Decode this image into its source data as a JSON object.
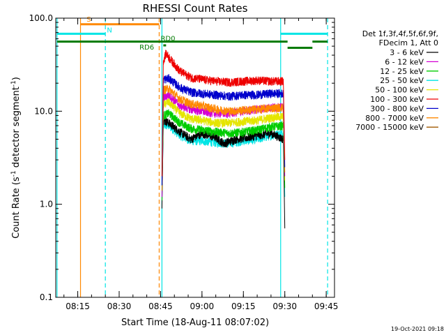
{
  "chart_data": {
    "type": "line",
    "title": "RHESSI Count Rates",
    "xlabel": "Start Time (18-Aug-11 08:07:02)",
    "ylabel_main": "Count Rate (s",
    "ylabel_sup": "-1",
    "ylabel_mid": " detector segment",
    "ylabel_sup2": "-1",
    "ylabel_end": ")",
    "yscale": "log",
    "ylim": [
      0.1,
      100.0
    ],
    "yticks": [
      {
        "value": 0.1,
        "label": "0.1"
      },
      {
        "value": 1.0,
        "label": "1.0"
      },
      {
        "value": 10.0,
        "label": "10.0"
      },
      {
        "value": 100.0,
        "label": "100.0"
      }
    ],
    "xlim": [
      "08:07:02",
      "09:48:00"
    ],
    "xticks": [
      {
        "value": "08:15",
        "label": "08:15"
      },
      {
        "value": "08:30",
        "label": "08:30"
      },
      {
        "value": "08:45",
        "label": "08:45"
      },
      {
        "value": "09:00",
        "label": "09:00"
      },
      {
        "value": "09:15",
        "label": "09:15"
      },
      {
        "value": "09:30",
        "label": "09:30"
      },
      {
        "value": "09:45",
        "label": "09:45"
      }
    ],
    "data_start": "08:45:30",
    "data_end": "09:30:00",
    "legend_header": [
      "Det 1f,3f,4f,5f,6f,9f,",
      "FDecim 1, Att 0"
    ],
    "legend_position": "right",
    "series": [
      {
        "name": "3 - 6 keV",
        "color": "#000000",
        "points": [
          [
            "08:45:30",
            0.9
          ],
          [
            "08:46:00",
            8.0
          ],
          [
            "08:48:00",
            7.5
          ],
          [
            "08:52:00",
            6.0
          ],
          [
            "08:56:00",
            5.0
          ],
          [
            "09:00:00",
            5.8
          ],
          [
            "09:05:00",
            5.2
          ],
          [
            "09:08:00",
            4.5
          ],
          [
            "09:12:00",
            5.0
          ],
          [
            "09:16:00",
            5.2
          ],
          [
            "09:20:00",
            5.5
          ],
          [
            "09:25:00",
            5.8
          ],
          [
            "09:29:30",
            5.0
          ],
          [
            "09:30:00",
            0.55
          ]
        ]
      },
      {
        "name": "6 - 12 keV",
        "color": "#d400d4",
        "points": [
          [
            "08:45:30",
            1.2
          ],
          [
            "08:46:00",
            14.0
          ],
          [
            "08:48:00",
            15.0
          ],
          [
            "08:52:00",
            11.5
          ],
          [
            "08:56:00",
            10.5
          ],
          [
            "09:00:00",
            10.0
          ],
          [
            "09:05:00",
            9.5
          ],
          [
            "09:10:00",
            9.5
          ],
          [
            "09:15:00",
            10.0
          ],
          [
            "09:20:00",
            10.5
          ],
          [
            "09:25:00",
            11.0
          ],
          [
            "09:29:30",
            11.0
          ],
          [
            "09:30:00",
            2.0
          ]
        ]
      },
      {
        "name": "12 - 25 keV",
        "color": "#00cc00",
        "points": [
          [
            "08:45:30",
            1.1
          ],
          [
            "08:46:00",
            9.0
          ],
          [
            "08:48:00",
            9.5
          ],
          [
            "08:52:00",
            7.5
          ],
          [
            "08:56:00",
            6.5
          ],
          [
            "09:00:00",
            6.3
          ],
          [
            "09:05:00",
            6.0
          ],
          [
            "09:10:00",
            5.8
          ],
          [
            "09:15:00",
            6.0
          ],
          [
            "09:20:00",
            6.3
          ],
          [
            "09:25:00",
            6.8
          ],
          [
            "09:29:30",
            7.0
          ],
          [
            "09:30:00",
            1.5
          ]
        ]
      },
      {
        "name": "25 - 50 keV",
        "color": "#00e5e5",
        "points": [
          [
            "08:45:30",
            1.0
          ],
          [
            "08:46:00",
            7.0
          ],
          [
            "08:48:00",
            7.0
          ],
          [
            "08:52:00",
            5.5
          ],
          [
            "08:56:00",
            4.8
          ],
          [
            "09:00:00",
            4.8
          ],
          [
            "09:05:00",
            4.6
          ],
          [
            "09:10:00",
            4.5
          ],
          [
            "09:15:00",
            4.8
          ],
          [
            "09:20:00",
            5.0
          ],
          [
            "09:25:00",
            5.5
          ],
          [
            "09:29:30",
            5.8
          ],
          [
            "09:30:00",
            1.2
          ]
        ]
      },
      {
        "name": "50 - 100 keV",
        "color": "#e5e500",
        "points": [
          [
            "08:45:30",
            1.3
          ],
          [
            "08:46:00",
            12.0
          ],
          [
            "08:48:00",
            12.5
          ],
          [
            "08:52:00",
            9.5
          ],
          [
            "08:56:00",
            8.3
          ],
          [
            "09:00:00",
            8.0
          ],
          [
            "09:05:00",
            7.5
          ],
          [
            "09:10:00",
            7.5
          ],
          [
            "09:15:00",
            7.8
          ],
          [
            "09:20:00",
            8.0
          ],
          [
            "09:25:00",
            8.5
          ],
          [
            "09:29:30",
            8.8
          ],
          [
            "09:30:00",
            1.8
          ]
        ]
      },
      {
        "name": "100 - 300 keV",
        "color": "#ee0000",
        "points": [
          [
            "08:45:30",
            2.0
          ],
          [
            "08:46:00",
            35.0
          ],
          [
            "08:47:00",
            42.0
          ],
          [
            "08:48:00",
            38.0
          ],
          [
            "08:50:00",
            32.0
          ],
          [
            "08:52:00",
            27.0
          ],
          [
            "08:56:00",
            23.0
          ],
          [
            "09:00:00",
            22.0
          ],
          [
            "09:05:00",
            21.0
          ],
          [
            "09:10:00",
            20.5
          ],
          [
            "09:15:00",
            21.0
          ],
          [
            "09:20:00",
            21.5
          ],
          [
            "09:25:00",
            21.0
          ],
          [
            "09:29:30",
            21.0
          ],
          [
            "09:30:00",
            3.0
          ]
        ]
      },
      {
        "name": "300 - 800 keV",
        "color": "#0000cc",
        "points": [
          [
            "08:45:30",
            1.6
          ],
          [
            "08:46:00",
            22.0
          ],
          [
            "08:48:00",
            22.5
          ],
          [
            "08:52:00",
            18.0
          ],
          [
            "08:56:00",
            16.0
          ],
          [
            "09:00:00",
            15.5
          ],
          [
            "09:05:00",
            15.0
          ],
          [
            "09:10:00",
            14.5
          ],
          [
            "09:15:00",
            15.0
          ],
          [
            "09:20:00",
            15.0
          ],
          [
            "09:25:00",
            15.5
          ],
          [
            "09:29:30",
            15.5
          ],
          [
            "09:30:00",
            2.5
          ]
        ]
      },
      {
        "name": "800 - 7000 keV",
        "color": "#ff8800",
        "points": [
          [
            "08:45:30",
            1.4
          ],
          [
            "08:46:00",
            17.0
          ],
          [
            "08:48:00",
            17.5
          ],
          [
            "08:52:00",
            13.5
          ],
          [
            "08:56:00",
            12.0
          ],
          [
            "09:00:00",
            11.5
          ],
          [
            "09:05:00",
            10.5
          ],
          [
            "09:10:00",
            10.0
          ],
          [
            "09:15:00",
            10.3
          ],
          [
            "09:20:00",
            10.5
          ],
          [
            "09:25:00",
            10.8
          ],
          [
            "09:29:30",
            11.0
          ],
          [
            "09:30:00",
            2.2
          ]
        ]
      },
      {
        "name": "7000 - 15000 keV",
        "color": "#a05a00",
        "points": []
      }
    ],
    "vertical_markers": [
      {
        "time": "08:07:30",
        "color": "#00e5e5",
        "style": "solid"
      },
      {
        "time": "08:16:00",
        "color": "#ff8800",
        "style": "solid"
      },
      {
        "time": "08:25:00",
        "color": "#00e5e5",
        "style": "dashed"
      },
      {
        "time": "08:44:30",
        "color": "#ff8800",
        "style": "dashed"
      },
      {
        "time": "08:45:30",
        "color": "#00e5e5",
        "style": "solid"
      },
      {
        "time": "09:28:30",
        "color": "#00e5e5",
        "style": "solid"
      },
      {
        "time": "09:45:30",
        "color": "#00e5e5",
        "style": "dashed"
      }
    ],
    "flag_bars": [
      {
        "label": "S",
        "start": "08:16:00",
        "end": "08:44:30",
        "y": 86.0,
        "color": "#ff8800"
      },
      {
        "label": "N",
        "start": "08:07:30",
        "end": "08:25:00",
        "y": 68.0,
        "color": "#00e5e5"
      },
      {
        "label": "",
        "start": "09:28:30",
        "end": "09:45:30",
        "y": 68.0,
        "color": "#00e5e5"
      },
      {
        "label": "",
        "start": "08:07:30",
        "end": "09:31:00",
        "y": 56.0,
        "color": "#007a00"
      },
      {
        "label": "",
        "start": "09:40:00",
        "end": "09:45:30",
        "y": 56.0,
        "color": "#007a00"
      },
      {
        "label": "RD0",
        "start": "08:46:00",
        "end": "08:47:00",
        "y": 51.0,
        "color": "#007a00"
      },
      {
        "label": "RD6",
        "start": "09:31:00",
        "end": "09:40:00",
        "y": 48.0,
        "color": "#007a00"
      }
    ],
    "flag_labels": [
      {
        "text": "S",
        "time": "08:19:00",
        "value": 92.0,
        "color": "#ff8800"
      },
      {
        "text": "N",
        "time": "08:26:30",
        "value": 70.0,
        "color": "#00e5e5"
      },
      {
        "text": "RD0",
        "time": "08:47:40",
        "value": 57.0,
        "color": "#007a00"
      },
      {
        "text": "RD6",
        "time": "08:40:00",
        "value": 46.0,
        "color": "#007a00"
      }
    ]
  },
  "footer": {
    "timestamp": "19-Oct-2021 09:18"
  }
}
